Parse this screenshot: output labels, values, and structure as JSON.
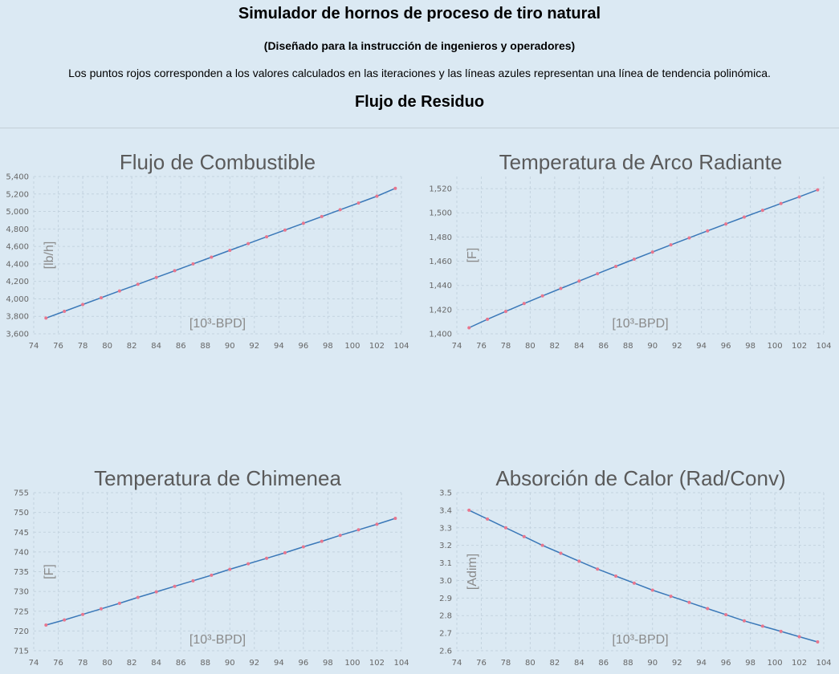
{
  "header": {
    "title": "Simulador de hornos de proceso de tiro natural",
    "subtitle": "(Diseñado para la instrucción de ingenieros y operadores)",
    "description": "Los puntos rojos corresponden a los valores calculados en las iteraciones y las líneas azules representan una línea de tendencia polinómica.",
    "section": "Flujo de Residuo"
  },
  "colors": {
    "background": "#dbe9f3",
    "points": "#e8768e",
    "trendline": "#3a78b8"
  },
  "chart_data": [
    {
      "type": "scatter",
      "title": "Flujo de Combustible",
      "xlabel": "[10³-BPD]",
      "ylabel": "[lb/h]",
      "xlim": [
        74,
        104
      ],
      "ylim": [
        3600,
        5400
      ],
      "xticks": [
        "74",
        "76",
        "78",
        "80",
        "82",
        "84",
        "86",
        "88",
        "90",
        "92",
        "94",
        "96",
        "98",
        "100",
        "102",
        "104"
      ],
      "yticks": [
        "3,600",
        "3,800",
        "4,000",
        "4,200",
        "4,400",
        "4,600",
        "4,800",
        "5,000",
        "5,200",
        "5,400"
      ],
      "ytick_values": [
        3600,
        3800,
        4000,
        4200,
        4400,
        4600,
        4800,
        5000,
        5200,
        5400
      ],
      "grid": true,
      "x": [
        75,
        76.5,
        78,
        79.5,
        81,
        82.5,
        84,
        85.5,
        87,
        88.5,
        90,
        91.5,
        93,
        94.5,
        96,
        97.5,
        99,
        100.5,
        102,
        103.5
      ],
      "series": [
        {
          "values": [
            3780,
            3857,
            3935,
            4012,
            4090,
            4167,
            4245,
            4322,
            4400,
            4477,
            4555,
            4632,
            4710,
            4787,
            4865,
            4942,
            5020,
            5097,
            5175,
            5265
          ]
        }
      ]
    },
    {
      "type": "scatter",
      "title": "Temperatura de Arco Radiante",
      "xlabel": "[10³-BPD]",
      "ylabel": "[F]",
      "xlim": [
        74,
        104
      ],
      "ylim": [
        1400,
        1530
      ],
      "xticks": [
        "74",
        "76",
        "78",
        "80",
        "82",
        "84",
        "86",
        "88",
        "90",
        "92",
        "94",
        "96",
        "98",
        "100",
        "102",
        "104"
      ],
      "yticks": [
        "1,400",
        "1,420",
        "1,440",
        "1,460",
        "1,480",
        "1,500",
        "1,520"
      ],
      "ytick_values": [
        1400,
        1420,
        1440,
        1460,
        1480,
        1500,
        1520
      ],
      "grid": true,
      "x": [
        75,
        76.5,
        78,
        79.5,
        81,
        82.5,
        84,
        85.5,
        87,
        88.5,
        90,
        91.5,
        93,
        94.5,
        96,
        97.5,
        99,
        100.5,
        102,
        103.5
      ],
      "series": [
        {
          "values": [
            1405,
            1412,
            1418.5,
            1425,
            1431.3,
            1437.5,
            1443.6,
            1449.7,
            1455.7,
            1461.7,
            1467.6,
            1473.5,
            1479.3,
            1485.1,
            1490.8,
            1496.5,
            1502.1,
            1507.7,
            1513.2,
            1519
          ]
        }
      ]
    },
    {
      "type": "scatter",
      "title": "Temperatura de Chimenea",
      "xlabel": "[10³-BPD]",
      "ylabel": "[F]",
      "xlim": [
        74,
        104
      ],
      "ylim": [
        715,
        755
      ],
      "xticks": [
        "74",
        "76",
        "78",
        "80",
        "82",
        "84",
        "86",
        "88",
        "90",
        "92",
        "94",
        "96",
        "98",
        "100",
        "102",
        "104"
      ],
      "yticks": [
        "715",
        "720",
        "725",
        "730",
        "735",
        "740",
        "745",
        "750",
        "755"
      ],
      "ytick_values": [
        715,
        720,
        725,
        730,
        735,
        740,
        745,
        750,
        755
      ],
      "grid": true,
      "x": [
        75,
        76.5,
        78,
        79.5,
        81,
        82.5,
        84,
        85.5,
        87,
        88.5,
        90,
        91.5,
        93,
        94.5,
        96,
        97.5,
        99,
        100.5,
        102,
        103.5
      ],
      "series": [
        {
          "values": [
            721.5,
            722.8,
            724.2,
            725.6,
            727,
            728.5,
            729.9,
            731.3,
            732.7,
            734.1,
            735.6,
            737,
            738.4,
            739.8,
            741.3,
            742.7,
            744.2,
            745.6,
            747,
            748.5
          ]
        }
      ]
    },
    {
      "type": "scatter",
      "title": "Absorción de Calor (Rad/Conv)",
      "xlabel": "[10³-BPD]",
      "ylabel": "[Adim]",
      "xlim": [
        74,
        104
      ],
      "ylim": [
        2.6,
        3.5
      ],
      "xticks": [
        "74",
        "76",
        "78",
        "80",
        "82",
        "84",
        "86",
        "88",
        "90",
        "92",
        "94",
        "96",
        "98",
        "100",
        "102",
        "104"
      ],
      "yticks": [
        "2.6",
        "2.7",
        "2.8",
        "2.9",
        "3.0",
        "3.1",
        "3.2",
        "3.3",
        "3.4",
        "3.5"
      ],
      "ytick_values": [
        2.6,
        2.7,
        2.8,
        2.9,
        3.0,
        3.1,
        3.2,
        3.3,
        3.4,
        3.5
      ],
      "grid": true,
      "x": [
        75,
        76.5,
        78,
        79.5,
        81,
        82.5,
        84,
        85.5,
        87,
        88.5,
        90,
        91.5,
        93,
        94.5,
        96,
        97.5,
        99,
        100.5,
        102,
        103.5
      ],
      "series": [
        {
          "values": [
            3.4,
            3.35,
            3.3,
            3.25,
            3.2,
            3.155,
            3.11,
            3.065,
            3.025,
            2.985,
            2.945,
            2.91,
            2.875,
            2.84,
            2.805,
            2.77,
            2.74,
            2.71,
            2.68,
            2.65
          ]
        }
      ]
    }
  ]
}
